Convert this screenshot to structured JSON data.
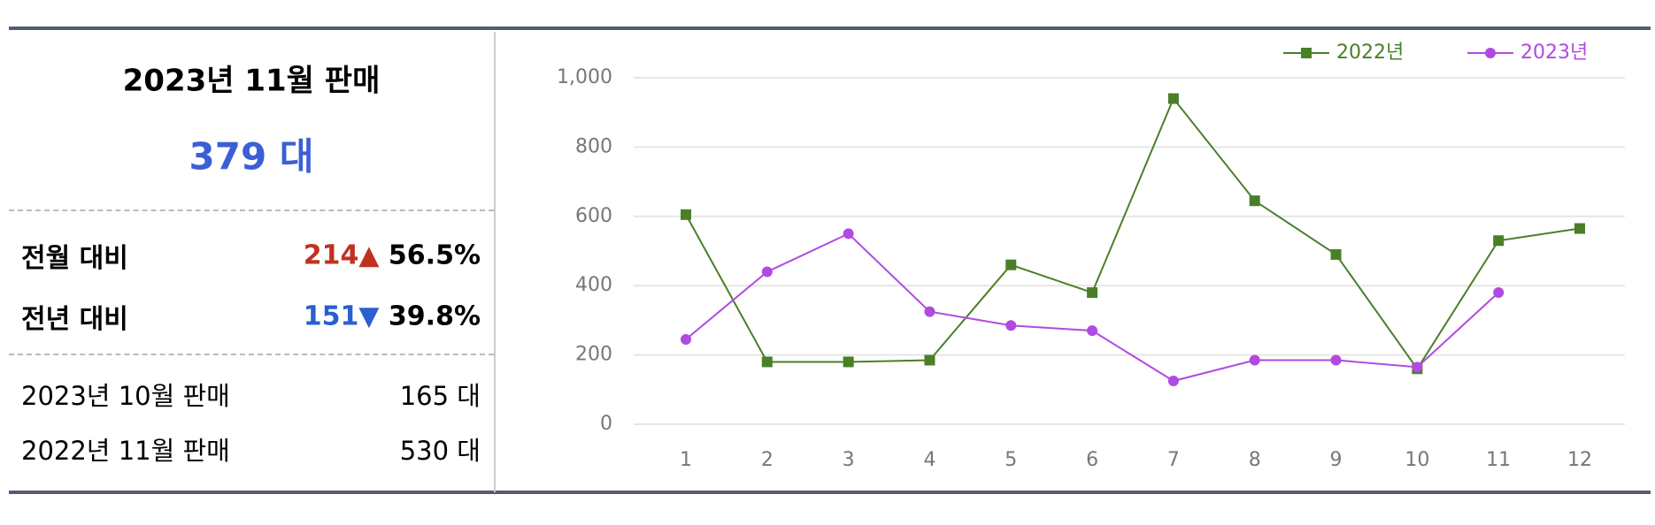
{
  "summary": {
    "title": "2023년 11월 판매",
    "total": "379 대",
    "mom": {
      "label": "전월 대비",
      "change": "214▲",
      "percent": "56.5%"
    },
    "yoy": {
      "label": "전년 대비",
      "change": "151▼",
      "percent": "39.8%"
    },
    "rows": [
      [
        "2023년 10월 판매",
        "165 대"
      ],
      [
        "2022년 11월 판매",
        "530 대"
      ]
    ]
  },
  "chart_data": {
    "type": "line",
    "categories": [
      "1",
      "2",
      "3",
      "4",
      "5",
      "6",
      "7",
      "8",
      "9",
      "10",
      "11",
      "12"
    ],
    "series": [
      {
        "name": "2022년",
        "color": "#4a7f28",
        "marker": "square",
        "values": [
          605,
          180,
          180,
          185,
          460,
          380,
          940,
          645,
          490,
          160,
          530,
          565
        ]
      },
      {
        "name": "2023년",
        "color": "#b04ae0",
        "marker": "circle",
        "values": [
          245,
          440,
          550,
          325,
          285,
          270,
          125,
          185,
          185,
          165,
          380,
          null
        ]
      }
    ],
    "ylim": [
      0,
      1000
    ],
    "yticks": [
      0,
      200,
      400,
      600,
      800,
      {
        "value": 1000,
        "label": "1,000"
      }
    ],
    "grid": true,
    "legend": "top-right"
  }
}
